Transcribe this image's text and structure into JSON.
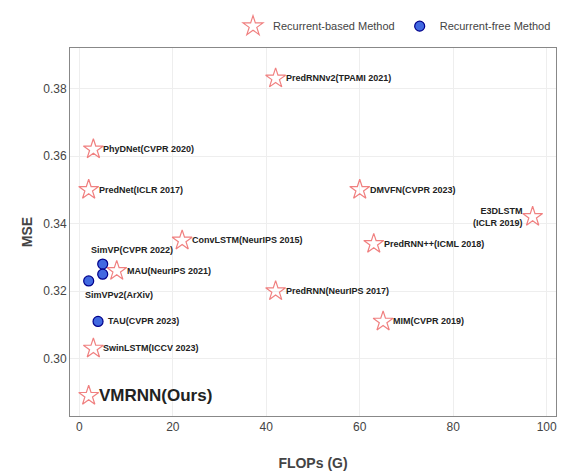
{
  "chart_data": {
    "type": "scatter",
    "xlabel": "FLOPs (G)",
    "ylabel": "MSE",
    "xlim": [
      -2,
      102
    ],
    "ylim": [
      0.283,
      0.392
    ],
    "xticks": [
      0,
      20,
      40,
      60,
      80,
      100
    ],
    "yticks": [
      {
        "value": 0.3,
        "label": "0.30"
      },
      0.32,
      0.34,
      0.36,
      0.38
    ],
    "grid": true,
    "legend": "upper right",
    "series": [
      {
        "name": "Recurrent-based Method",
        "color": "#F08080",
        "marker": "star-open",
        "x": [
          42,
          3,
          2,
          60,
          97,
          22,
          63,
          8,
          42,
          65,
          3,
          2
        ],
        "values": [
          0.383,
          0.362,
          0.35,
          0.35,
          0.342,
          0.335,
          0.334,
          0.326,
          0.32,
          0.311,
          0.303,
          0.289
        ],
        "labels": [
          "PredRNNv2(TPAMI 2021)",
          "PhyDNet(CVPR 2020)",
          "PredNet(ICLR 2017)",
          "DMVFN(CVPR 2023)",
          "E3DLSTM\n(ICLR 2019)",
          "ConvLSTM(NeurIPS 2015)",
          "PredRNN++(ICML 2018)",
          "MAU(NeurIPS 2021)",
          "PredRNN(NeurIPS 2017)",
          "MIM(CVPR 2019)",
          "SwinLSTM(ICCV 2023)",
          "VMRNN(Ours)"
        ]
      },
      {
        "name": "Recurrent-free Method",
        "color": "#4169E1",
        "marker": "circle",
        "x": [
          5,
          5,
          2,
          4
        ],
        "values": [
          0.328,
          0.325,
          0.323,
          0.311
        ],
        "labels": [
          "SimVP(CVPR 2022)",
          null,
          "SimVPv2(ArXiv)",
          "TAU(CVPR 2023)"
        ]
      }
    ]
  }
}
